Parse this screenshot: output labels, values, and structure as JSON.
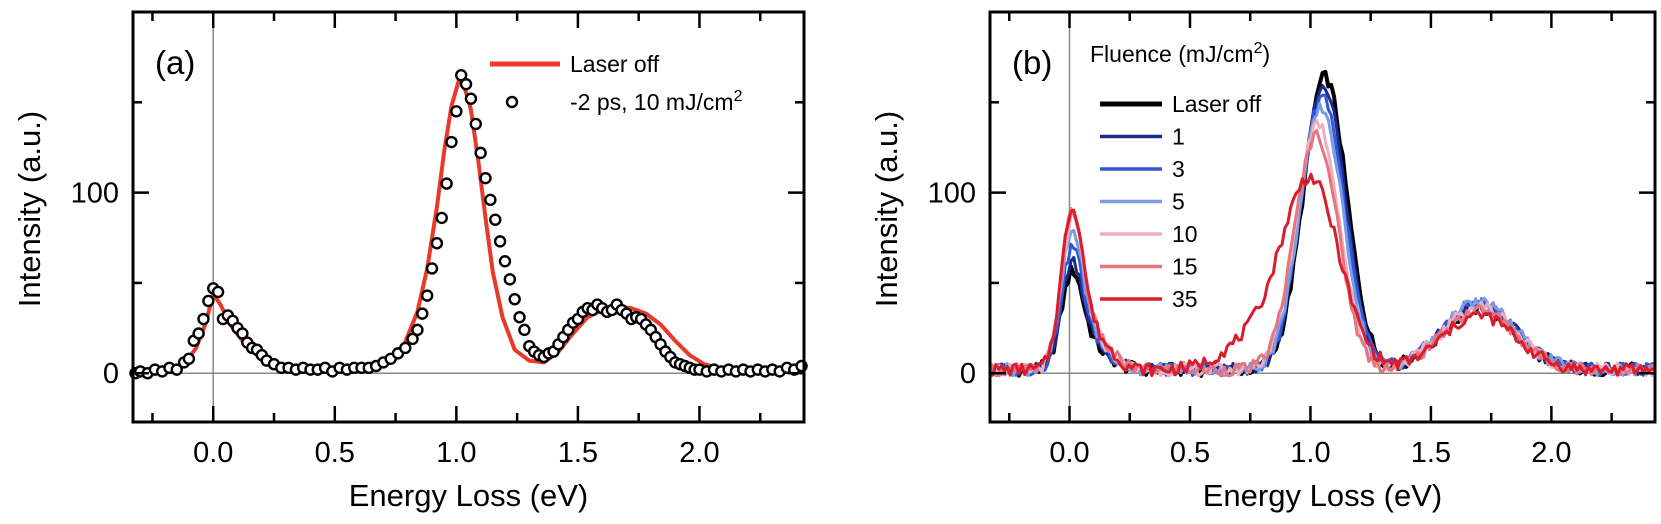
{
  "chart_data": [
    {
      "type": "line",
      "panel_label": "(a)",
      "xlabel": "Energy Loss (eV)",
      "ylabel": "Intensity (a.u.)",
      "xlim": [
        -0.33,
        2.43
      ],
      "ylim": [
        -27,
        200
      ],
      "xticks": [
        0.0,
        0.5,
        1.0,
        1.5,
        2.0
      ],
      "xtick_labels": [
        "0.0",
        "0.5",
        "1.0",
        "1.5",
        "2.0"
      ],
      "yticks": [
        0,
        100
      ],
      "ytick_labels": [
        "0",
        "100"
      ],
      "grid": false,
      "zero_lines": true,
      "legend": {
        "position": "top-right",
        "title": ""
      },
      "series": [
        {
          "name": "Laser off",
          "kind": "line",
          "color": "#e8392b",
          "x": [
            -0.33,
            -0.2,
            -0.12,
            -0.07,
            -0.03,
            0.0,
            0.03,
            0.07,
            0.12,
            0.18,
            0.25,
            0.32,
            0.4,
            0.5,
            0.6,
            0.7,
            0.78,
            0.84,
            0.88,
            0.92,
            0.95,
            0.98,
            1.01,
            1.03,
            1.06,
            1.09,
            1.12,
            1.15,
            1.19,
            1.24,
            1.3,
            1.36,
            1.42,
            1.48,
            1.54,
            1.6,
            1.66,
            1.72,
            1.78,
            1.84,
            1.9,
            1.96,
            2.02,
            2.1,
            2.2,
            2.3,
            2.43
          ],
          "y": [
            0,
            1,
            5,
            14,
            28,
            44,
            38,
            27,
            18,
            10,
            4,
            2,
            1,
            1,
            2,
            5,
            14,
            34,
            58,
            92,
            123,
            148,
            162,
            160,
            146,
            118,
            86,
            56,
            31,
            13,
            7,
            6,
            12,
            22,
            31,
            35,
            37,
            36,
            33,
            27,
            18,
            10,
            5,
            2,
            1,
            1,
            2
          ]
        },
        {
          "name": "-2 ps, 10 mJ/cm²",
          "kind": "markers",
          "color": "#000000",
          "x": [
            -0.32,
            -0.3,
            -0.27,
            -0.24,
            -0.21,
            -0.18,
            -0.15,
            -0.12,
            -0.1,
            -0.08,
            -0.06,
            -0.04,
            -0.02,
            0.0,
            0.02,
            0.04,
            0.06,
            0.08,
            0.1,
            0.12,
            0.14,
            0.16,
            0.18,
            0.2,
            0.22,
            0.25,
            0.28,
            0.31,
            0.34,
            0.37,
            0.4,
            0.43,
            0.46,
            0.49,
            0.52,
            0.55,
            0.58,
            0.61,
            0.64,
            0.67,
            0.7,
            0.73,
            0.76,
            0.79,
            0.82,
            0.84,
            0.86,
            0.88,
            0.9,
            0.92,
            0.94,
            0.96,
            0.98,
            1.0,
            1.02,
            1.04,
            1.06,
            1.08,
            1.1,
            1.12,
            1.14,
            1.16,
            1.18,
            1.2,
            1.22,
            1.24,
            1.26,
            1.28,
            1.3,
            1.32,
            1.34,
            1.36,
            1.38,
            1.4,
            1.42,
            1.44,
            1.46,
            1.48,
            1.5,
            1.52,
            1.54,
            1.56,
            1.58,
            1.6,
            1.62,
            1.64,
            1.66,
            1.68,
            1.7,
            1.72,
            1.74,
            1.76,
            1.78,
            1.8,
            1.82,
            1.84,
            1.86,
            1.88,
            1.9,
            1.92,
            1.94,
            1.96,
            1.98,
            2.0,
            2.03,
            2.06,
            2.09,
            2.12,
            2.15,
            2.18,
            2.21,
            2.24,
            2.27,
            2.3,
            2.33,
            2.36,
            2.39,
            2.42
          ],
          "y": [
            0,
            1,
            0,
            2,
            1,
            3,
            2,
            6,
            8,
            18,
            22,
            30,
            40,
            47,
            45,
            30,
            32,
            29,
            25,
            22,
            17,
            14,
            13,
            10,
            7,
            5,
            3,
            3,
            2,
            3,
            2,
            2,
            3,
            1,
            3,
            2,
            3,
            3,
            3,
            4,
            6,
            8,
            11,
            14,
            19,
            24,
            33,
            43,
            58,
            72,
            86,
            105,
            128,
            145,
            165,
            160,
            152,
            138,
            122,
            108,
            96,
            85,
            73,
            62,
            52,
            41,
            31,
            24,
            15,
            12,
            10,
            9,
            11,
            12,
            16,
            20,
            24,
            28,
            30,
            34,
            36,
            35,
            38,
            36,
            34,
            35,
            38,
            35,
            33,
            30,
            31,
            30,
            27,
            24,
            20,
            16,
            12,
            9,
            6,
            5,
            4,
            3,
            2,
            2,
            1,
            2,
            1,
            2,
            1,
            2,
            1,
            2,
            1,
            2,
            1,
            3,
            2,
            4
          ]
        }
      ]
    },
    {
      "type": "line",
      "panel_label": "(b)",
      "xlabel": "Energy Loss (eV)",
      "ylabel": "Intensity (a.u.)",
      "xlim": [
        -0.33,
        2.43
      ],
      "ylim": [
        -27,
        200
      ],
      "xticks": [
        0.0,
        0.5,
        1.0,
        1.5,
        2.0
      ],
      "xtick_labels": [
        "0.0",
        "0.5",
        "1.0",
        "1.5",
        "2.0"
      ],
      "yticks": [
        0,
        100
      ],
      "ytick_labels": [
        "0",
        "100"
      ],
      "grid": false,
      "zero_lines": true,
      "legend": {
        "position": "top-left",
        "title": "Fluence (mJ/cm²)"
      },
      "series": [
        {
          "name": "Laser off",
          "color": "#000000",
          "peak0": 50,
          "peak1": 162,
          "peak2": 34,
          "shift": 0.03
        },
        {
          "name": "1",
          "color": "#1a2a8c",
          "peak0": 55,
          "peak1": 158,
          "peak2": 36,
          "shift": 0.025
        },
        {
          "name": "3",
          "color": "#2f57d6",
          "peak0": 62,
          "peak1": 152,
          "peak2": 37,
          "shift": 0.02
        },
        {
          "name": "5",
          "color": "#7b9be6",
          "peak0": 70,
          "peak1": 145,
          "peak2": 37,
          "shift": 0.015
        },
        {
          "name": "10",
          "color": "#ebb0c0",
          "peak0": 76,
          "peak1": 137,
          "peak2": 35,
          "shift": 0.0
        },
        {
          "name": "15",
          "color": "#e8747f",
          "peak0": 80,
          "peak1": 130,
          "peak2": 33,
          "shift": -0.005
        },
        {
          "name": "35",
          "color": "#d81e2c",
          "peak0": 82,
          "peak1": 105,
          "peak2": 30,
          "shift": -0.03
        }
      ]
    }
  ]
}
